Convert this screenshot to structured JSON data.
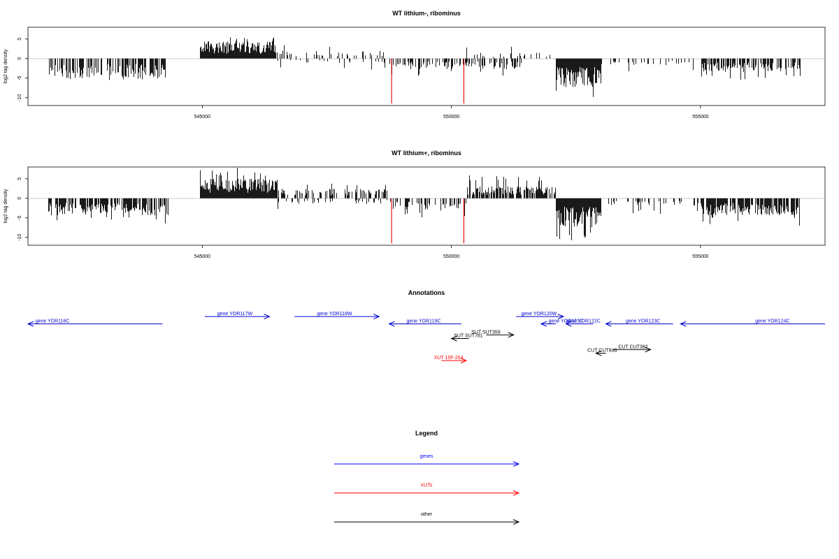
{
  "chart_data": [
    {
      "type": "bar",
      "title": "WT lithium-, ribominus",
      "ylabel": "log2 tag density",
      "xlim": [
        541500,
        557500
      ],
      "ylim": [
        -12,
        8
      ],
      "xticks": [
        "545000",
        "550000",
        "555000"
      ],
      "yticks": [
        "5",
        "0",
        "-5",
        "-10"
      ],
      "regions": [
        {
          "start": 541900,
          "end": 544300,
          "sign": -1,
          "amp": 4.0,
          "peak": 5.6,
          "density": 0.55
        },
        {
          "start": 544950,
          "end": 546450,
          "sign": 1,
          "amp": 3.5,
          "peak": 6.0,
          "density": 1.0
        },
        {
          "start": 546450,
          "end": 548700,
          "sign": 1,
          "amp": 1.6,
          "peak": 3.8,
          "density": 0.22
        },
        {
          "start": 546500,
          "end": 548700,
          "sign": -1,
          "amp": 1.0,
          "peak": 3.0,
          "density": 0.15
        },
        {
          "start": 548750,
          "end": 551400,
          "sign": -1,
          "amp": 2.2,
          "peak": 4.5,
          "density": 0.45
        },
        {
          "start": 550300,
          "end": 552100,
          "sign": 1,
          "amp": 1.2,
          "peak": 3.2,
          "density": 0.15
        },
        {
          "start": 552100,
          "end": 553000,
          "sign": -1,
          "amp": 6.0,
          "peak": 10.5,
          "density": 1.0
        },
        {
          "start": 553000,
          "end": 555000,
          "sign": -1,
          "amp": 1.4,
          "peak": 3.5,
          "density": 0.18
        },
        {
          "start": 555000,
          "end": 557000,
          "sign": -1,
          "amp": 2.8,
          "peak": 5.5,
          "density": 0.6
        }
      ],
      "red_spikes": [
        {
          "x": 548800,
          "y": -11.5
        },
        {
          "x": 550250,
          "y": -11.5
        }
      ]
    },
    {
      "type": "bar",
      "title": "WT lithium+, ribominus",
      "ylabel": "log2 tag density",
      "xlim": [
        541500,
        557500
      ],
      "ylim": [
        -12,
        8
      ],
      "xticks": [
        "545000",
        "550000",
        "555000"
      ],
      "yticks": [
        "5",
        "0",
        "-5",
        "-10"
      ],
      "regions": [
        {
          "start": 541900,
          "end": 544300,
          "sign": -1,
          "amp": 3.5,
          "peak": 6.5,
          "density": 0.6
        },
        {
          "start": 544950,
          "end": 546500,
          "sign": 1,
          "amp": 4.0,
          "peak": 7.8,
          "density": 1.0
        },
        {
          "start": 546500,
          "end": 548700,
          "sign": 1,
          "amp": 2.0,
          "peak": 4.0,
          "density": 0.45
        },
        {
          "start": 546500,
          "end": 548700,
          "sign": -1,
          "amp": 1.2,
          "peak": 3.5,
          "density": 0.18
        },
        {
          "start": 548750,
          "end": 550300,
          "sign": -1,
          "amp": 2.5,
          "peak": 5.0,
          "density": 0.4
        },
        {
          "start": 550300,
          "end": 552100,
          "sign": 1,
          "amp": 2.5,
          "peak": 6.0,
          "density": 0.7
        },
        {
          "start": 552100,
          "end": 553000,
          "sign": -1,
          "amp": 6.0,
          "peak": 11.5,
          "density": 1.0
        },
        {
          "start": 553000,
          "end": 555000,
          "sign": -1,
          "amp": 1.5,
          "peak": 4.0,
          "density": 0.2
        },
        {
          "start": 555000,
          "end": 557000,
          "sign": -1,
          "amp": 3.5,
          "peak": 7.0,
          "density": 0.8
        }
      ],
      "red_spikes": [
        {
          "x": 548800,
          "y": -11.5
        },
        {
          "x": 550250,
          "y": -11.5
        }
      ]
    }
  ],
  "annotations": {
    "title": "Annotations",
    "xlim": [
      541500,
      557500
    ],
    "items": [
      {
        "label": "gene YOR116C",
        "start": 541500,
        "end": 544200,
        "row": 1,
        "strand": "-",
        "color": "#0000cc",
        "label_at": 541650
      },
      {
        "label": "gene YOR117W",
        "start": 545050,
        "end": 546350,
        "row": 0,
        "strand": "+",
        "color": "#0000cc",
        "label_at": 545300
      },
      {
        "label": "gene YOR118W",
        "start": 546850,
        "end": 548550,
        "row": 0,
        "strand": "+",
        "color": "#0000cc",
        "label_at": 547300
      },
      {
        "label": "gene YOR119C",
        "start": 548750,
        "end": 550200,
        "row": 1,
        "strand": "-",
        "color": "#0000cc",
        "label_at": 549100
      },
      {
        "label": "gene YOR120W",
        "start": 551300,
        "end": 552250,
        "row": 0,
        "strand": "+",
        "color": "#0000cc",
        "label_at": 551400
      },
      {
        "label": "gene YOR121C",
        "start": 551800,
        "end": 552100,
        "row": 1,
        "strand": "-",
        "color": "#0000cc",
        "label_at": 551950
      },
      {
        "label": "gene YOR122C",
        "start": 552300,
        "end": 552850,
        "row": 1,
        "strand": "-",
        "color": "#0000cc",
        "label_at": 552300
      },
      {
        "label": "gene YOR123C",
        "start": 553100,
        "end": 554450,
        "row": 1,
        "strand": "-",
        "color": "#0000cc",
        "label_at": 553500
      },
      {
        "label": "gene YOR124C",
        "start": 554600,
        "end": 557500,
        "row": 1,
        "strand": "-",
        "color": "#0000cc",
        "label_at": 556100
      },
      {
        "label": "SUT SUT359",
        "start": 550700,
        "end": 551250,
        "row": 2.5,
        "strand": "+",
        "color": "#000000",
        "label_at": 550400
      },
      {
        "label": "SUT SUT781",
        "start": 550000,
        "end": 550350,
        "row": 3,
        "strand": "-",
        "color": "#000000",
        "label_at": 550050
      },
      {
        "label": "CUT CUT382",
        "start": 553250,
        "end": 554000,
        "row": 4.5,
        "strand": "+",
        "color": "#000000",
        "label_at": 553350
      },
      {
        "label": "CUT CUT846",
        "start": 552900,
        "end": 553100,
        "row": 5,
        "strand": "-",
        "color": "#000000",
        "label_at": 552730
      },
      {
        "label": "XUT 15F-263",
        "start": 549800,
        "end": 550300,
        "row": 6,
        "strand": "+",
        "color": "#ff0000",
        "label_at": 549650
      }
    ]
  },
  "legend": {
    "title": "Legend",
    "items": [
      {
        "label": "genes",
        "color": "#0000ff"
      },
      {
        "label": "XUTs",
        "color": "#ff0000"
      },
      {
        "label": "other",
        "color": "#000000"
      }
    ]
  }
}
